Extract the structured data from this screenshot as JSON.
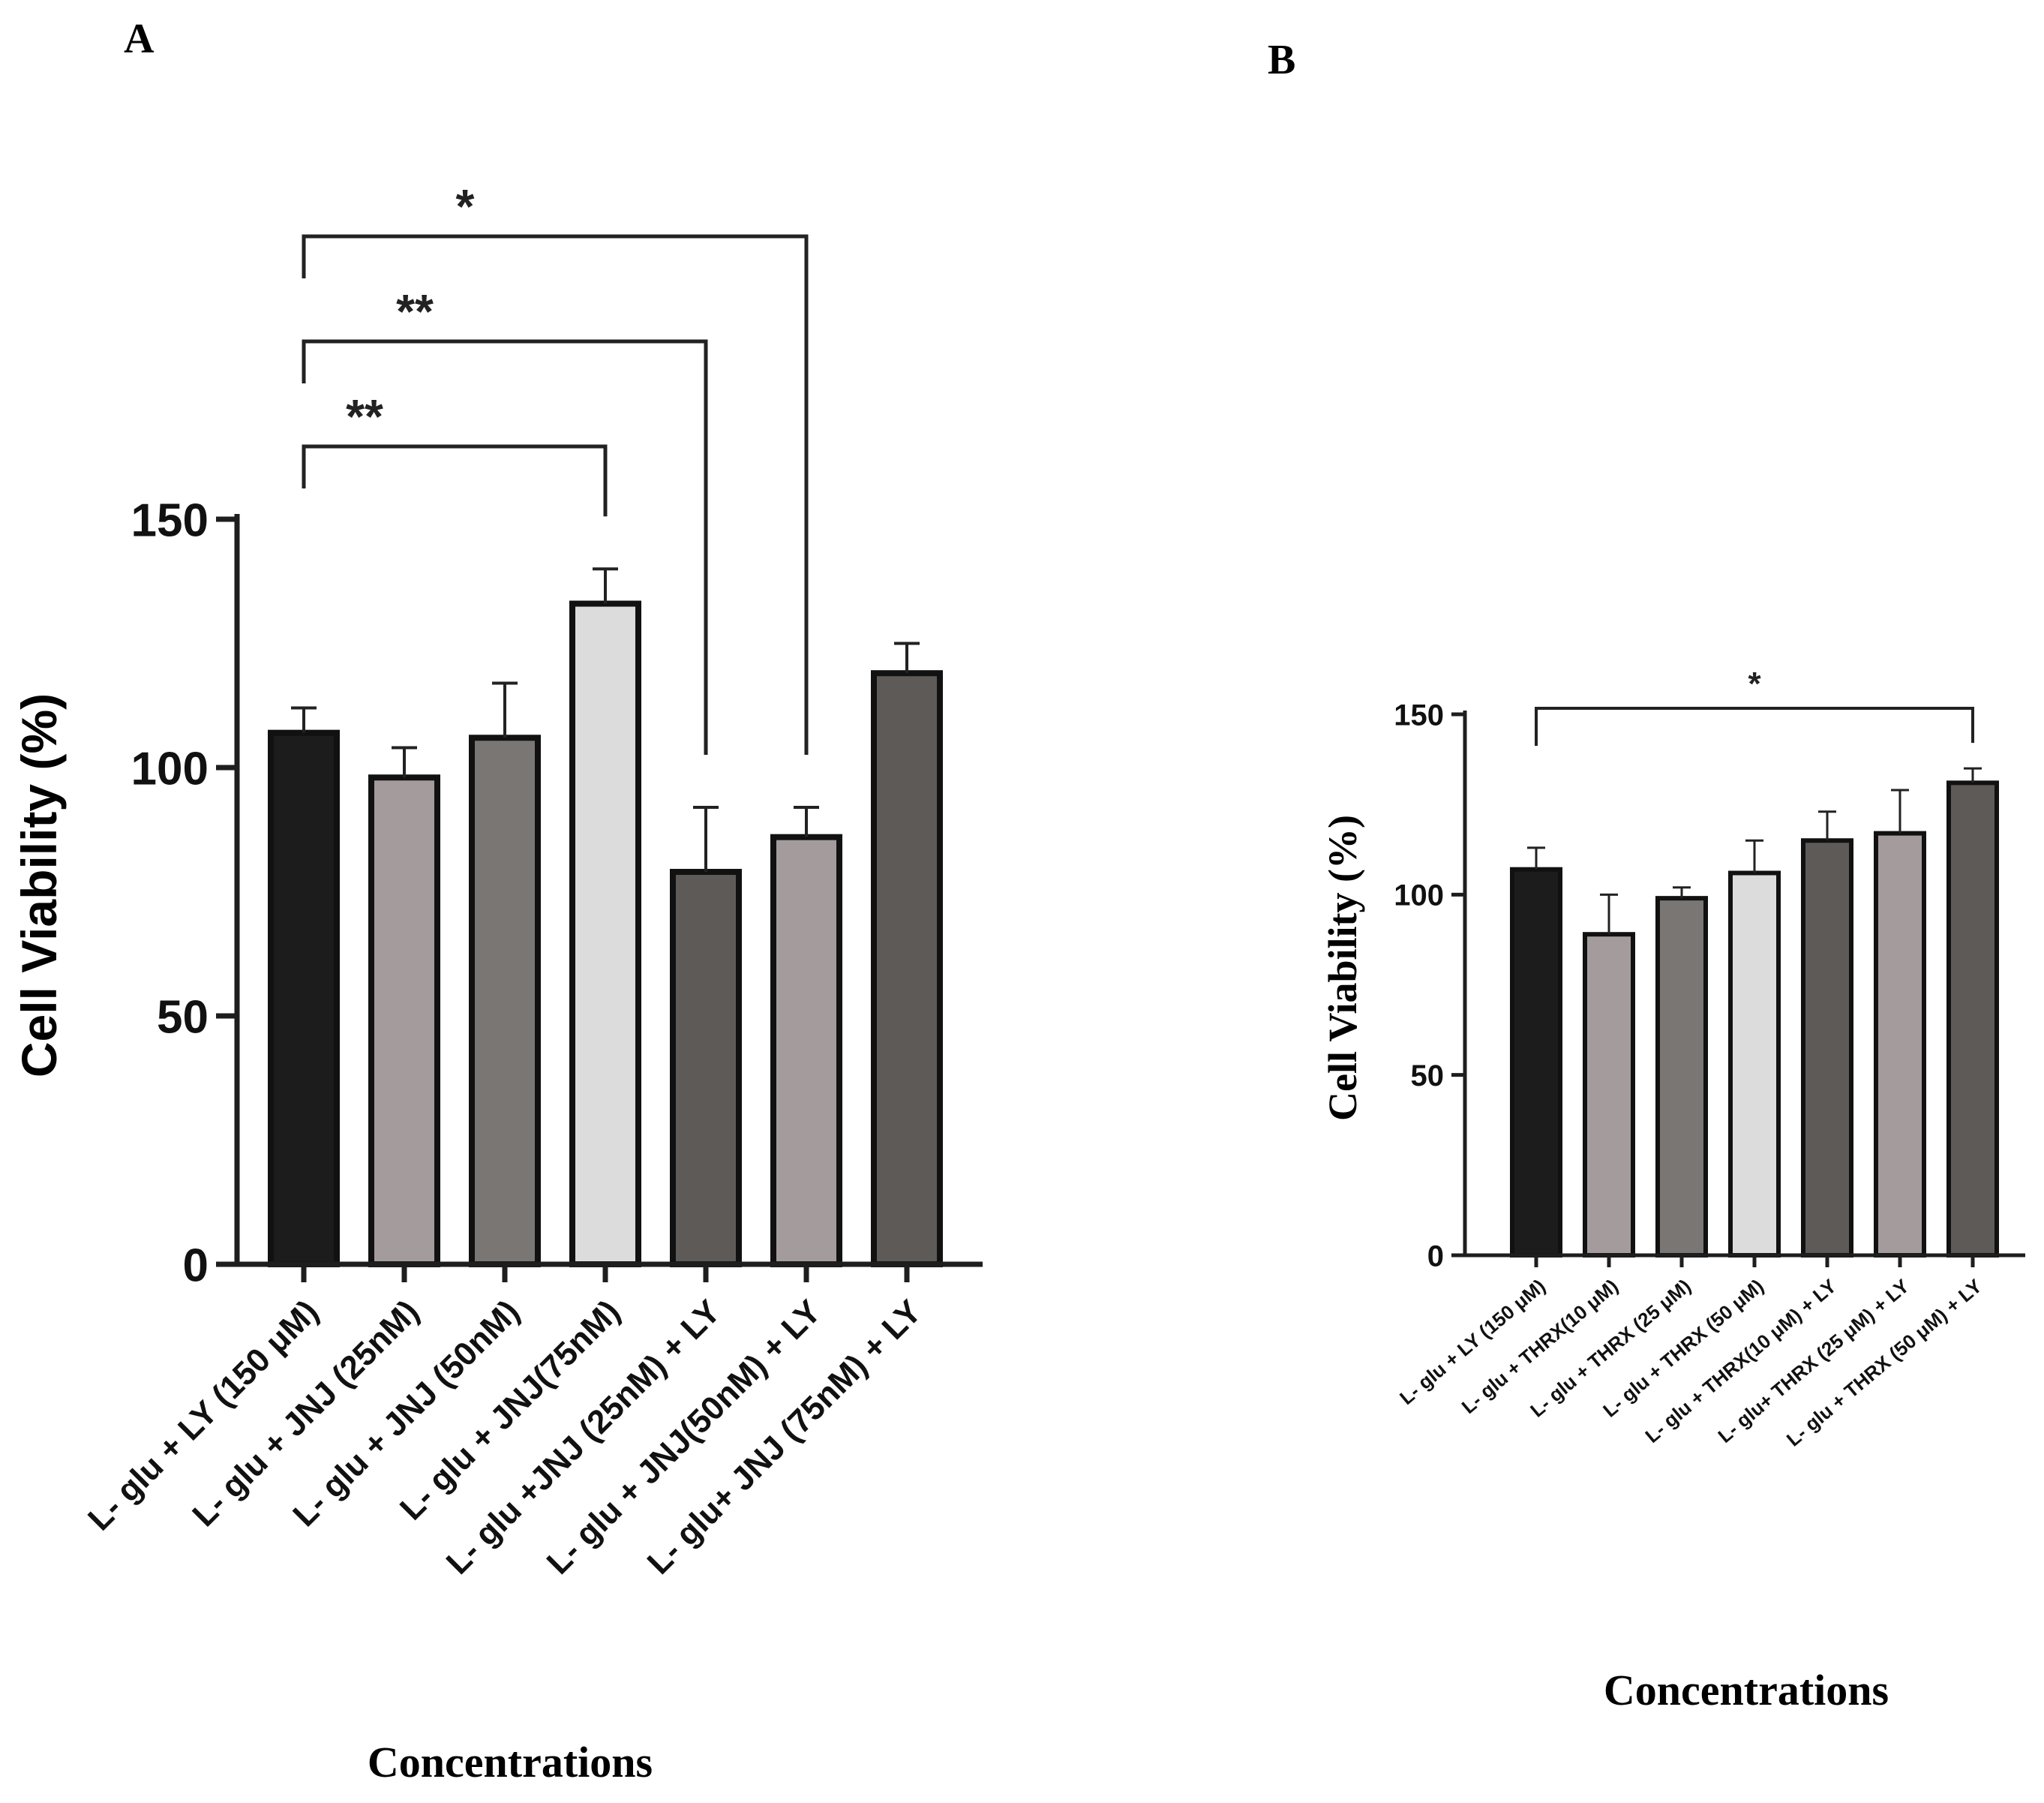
{
  "colors": {
    "axis": "#1e1e1e",
    "bar_black": "#1c1c1c",
    "bar_mid_gray": "#a49c9c",
    "bar_dark_gray": "#7a7674",
    "bar_light_gray": "#dcdcdc",
    "bar_charcoal": "#5e5a58"
  },
  "chart_data": [
    {
      "panel": "A",
      "type": "bar",
      "title": "",
      "xlabel": "Concentrations",
      "ylabel": "Cell Viability (%)",
      "ylim": [
        0,
        150
      ],
      "yticks": [
        0,
        50,
        100,
        150
      ],
      "grid": false,
      "categories": [
        "L- glu + LY (150 μM)",
        "L- glu + JNJ (25nM)",
        "L- glu + JNJ (50nM)",
        "L- glu + JNJ(75nM)",
        "L- glu +JNJ (25nM) + LY",
        "L- glu + JNJ(50nM) + LY",
        "L- glu+ JNJ (75nM) + LY"
      ],
      "values": [
        107,
        98,
        106,
        133,
        79,
        86,
        119
      ],
      "errors": [
        5,
        6,
        11,
        7,
        13,
        6,
        6
      ],
      "bar_colors": [
        "#1c1c1c",
        "#a49c9c",
        "#7a7674",
        "#dcdcdc",
        "#5e5a58",
        "#a49c9c",
        "#5e5a58"
      ],
      "significance": [
        {
          "from": 0,
          "to": 3,
          "label": "**"
        },
        {
          "from": 0,
          "to": 4,
          "label": "**"
        },
        {
          "from": 0,
          "to": 5,
          "label": "*"
        }
      ]
    },
    {
      "panel": "B",
      "type": "bar",
      "title": "",
      "xlabel": "Concentrations",
      "ylabel": "Cell Viability (%)",
      "ylim": [
        0,
        150
      ],
      "yticks": [
        0,
        50,
        100,
        150
      ],
      "grid": false,
      "categories": [
        "L- glu + LY (150 μM)",
        "L- glu + THRX(10 μM)",
        "L- glu + THRX (25 μM)",
        "L- glu + THRX (50 μM)",
        "L- glu + THRX(10 μM) + LY",
        "L- glu+ THRX (25 μM) + LY",
        "L- glu + THRX (50 μM) + LY"
      ],
      "values": [
        107,
        89,
        99,
        106,
        115,
        117,
        131
      ],
      "errors": [
        6,
        11,
        3,
        9,
        8,
        12,
        4
      ],
      "bar_colors": [
        "#1c1c1c",
        "#a49c9c",
        "#7a7674",
        "#dcdcdc",
        "#5e5a58",
        "#a49c9c",
        "#5e5a58"
      ],
      "significance": [
        {
          "from": 0,
          "to": 6,
          "label": "*"
        }
      ]
    }
  ]
}
